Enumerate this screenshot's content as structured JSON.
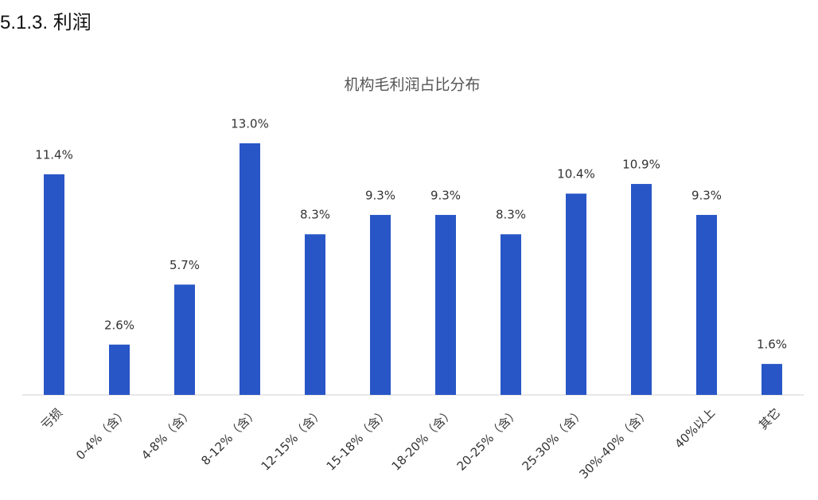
{
  "heading": "5.1.3.  利润",
  "chart_data": {
    "type": "bar",
    "title": "机构毛利润占比分布",
    "categories": [
      "亏损",
      "0-4%（含）",
      "4-8%（含）",
      "8-12%（含）",
      "12-15%（含）",
      "15-18%（含）",
      "18-20%（含）",
      "20-25%（含）",
      "25-30%（含）",
      "30%-40%（含）",
      "40%以上",
      "其它"
    ],
    "values": [
      11.4,
      2.6,
      5.7,
      13.0,
      8.3,
      9.3,
      9.3,
      8.3,
      10.4,
      10.9,
      9.3,
      1.6
    ],
    "value_labels": [
      "11.4%",
      "2.6%",
      "5.7%",
      "13.0%",
      "8.3%",
      "9.3%",
      "9.3%",
      "8.3%",
      "10.4%",
      "10.9%",
      "9.3%",
      "1.6%"
    ],
    "color": "#2856c6"
  }
}
